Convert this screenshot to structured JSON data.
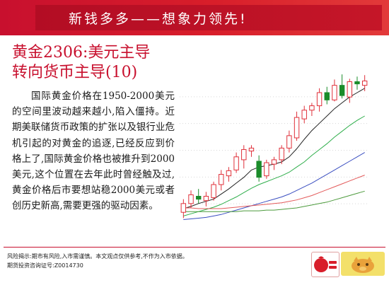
{
  "banner": {
    "text": "新钱多多——想象力领先!"
  },
  "headline": {
    "line1": "黄金2306:美元主导",
    "line2": "转向货币主导(10)"
  },
  "body": {
    "paragraph": "国际黄金价格在1950-2000美元的空间里波动越来越小,陷入僵持。近期美联储货币政策的扩张以及银行业危机引起的对黄金的追逐,已经反应到价格上了,国际黄金价格也被推升到2000美元,这个位置在去年此时曾经触及过,黄金价格后市要想站稳2000美元或者创历史新高,需要更强的驱动因素。"
  },
  "footer": {
    "risk": "风险揭示:期市有风险,入市需谨慎。本文观点仅供参考,不作为入市依据。",
    "license": "期货投资咨询证号:Z0014730"
  },
  "logos": {
    "xinqian_icon": "money-bag-logo-icon",
    "tingtai_icon": "pig-mascot-logo-icon"
  },
  "colors": {
    "brand_red": "#c8102e",
    "candle_up": "#e0303a",
    "candle_down": "#1a8c2a",
    "ma_black": "#222222",
    "ma_green": "#2fae4b",
    "ma_blue": "#3a4ec0",
    "ma_red": "#e35a5a",
    "ma_darkgreen": "#4c9a3c"
  },
  "chart_data": {
    "type": "candlestick",
    "x_axis_visible": false,
    "y_axis_visible": false,
    "grid": "horizontal-dotted",
    "candles": [
      {
        "o": 1820,
        "h": 1838,
        "l": 1812,
        "c": 1832
      },
      {
        "o": 1832,
        "h": 1850,
        "l": 1826,
        "c": 1844
      },
      {
        "o": 1842,
        "h": 1852,
        "l": 1832,
        "c": 1838
      },
      {
        "o": 1836,
        "h": 1848,
        "l": 1828,
        "c": 1842
      },
      {
        "o": 1840,
        "h": 1862,
        "l": 1836,
        "c": 1858
      },
      {
        "o": 1858,
        "h": 1878,
        "l": 1850,
        "c": 1872
      },
      {
        "o": 1870,
        "h": 1882,
        "l": 1862,
        "c": 1877
      },
      {
        "o": 1878,
        "h": 1902,
        "l": 1874,
        "c": 1896
      },
      {
        "o": 1892,
        "h": 1912,
        "l": 1880,
        "c": 1906
      },
      {
        "o": 1904,
        "h": 1912,
        "l": 1896,
        "c": 1908
      },
      {
        "o": 1890,
        "h": 1898,
        "l": 1862,
        "c": 1868
      },
      {
        "o": 1870,
        "h": 1892,
        "l": 1866,
        "c": 1888
      },
      {
        "o": 1886,
        "h": 1896,
        "l": 1878,
        "c": 1892
      },
      {
        "o": 1892,
        "h": 1912,
        "l": 1886,
        "c": 1908
      },
      {
        "o": 1908,
        "h": 1932,
        "l": 1902,
        "c": 1925
      },
      {
        "o": 1922,
        "h": 1958,
        "l": 1918,
        "c": 1950
      },
      {
        "o": 1948,
        "h": 1966,
        "l": 1942,
        "c": 1960
      },
      {
        "o": 1960,
        "h": 1970,
        "l": 1952,
        "c": 1966
      },
      {
        "o": 1966,
        "h": 1990,
        "l": 1958,
        "c": 1984
      },
      {
        "o": 1984,
        "h": 1992,
        "l": 1968,
        "c": 1974
      },
      {
        "o": 1974,
        "h": 2002,
        "l": 1972,
        "c": 1994
      },
      {
        "o": 1994,
        "h": 2009,
        "l": 1976,
        "c": 1980
      },
      {
        "o": 1978,
        "h": 2003,
        "l": 1970,
        "c": 1999
      },
      {
        "o": 1999,
        "h": 2006,
        "l": 1988,
        "c": 1996
      },
      {
        "o": 1994,
        "h": 2008,
        "l": 1986,
        "c": 2000
      }
    ],
    "moving_averages": [
      {
        "color_key": "ma_black",
        "values": [
          1825,
          1828,
          1832,
          1835,
          1838,
          1845,
          1852,
          1860,
          1868,
          1878,
          1882,
          1884,
          1886,
          1889,
          1896,
          1907,
          1920,
          1932,
          1942,
          1952,
          1962,
          1970,
          1978,
          1984,
          1990
        ]
      },
      {
        "color_key": "ma_green",
        "values": [
          1815,
          1818,
          1821,
          1824,
          1827,
          1831,
          1836,
          1841,
          1847,
          1853,
          1858,
          1862,
          1866,
          1870,
          1875,
          1882,
          1889,
          1898,
          1906,
          1914,
          1923,
          1931,
          1939,
          1946,
          1952
        ]
      },
      {
        "color_key": "ma_blue",
        "values": [
          1810,
          1811,
          1812,
          1813,
          1815,
          1817,
          1820,
          1823,
          1826,
          1829,
          1832,
          1835,
          1838,
          1841,
          1845,
          1850,
          1855,
          1860,
          1866,
          1872,
          1878,
          1884,
          1890,
          1896,
          1902
        ]
      },
      {
        "color_key": "ma_red",
        "values": [
          1826,
          1826,
          1825,
          1825,
          1825,
          1825,
          1826,
          1827,
          1828,
          1829,
          1830,
          1831,
          1832,
          1833,
          1835,
          1837,
          1840,
          1843,
          1847,
          1851,
          1855,
          1859,
          1863,
          1867,
          1871
        ]
      },
      {
        "color_key": "ma_darkgreen",
        "values": [
          1821,
          1821,
          1821,
          1821,
          1821,
          1821,
          1821,
          1821,
          1822,
          1822,
          1822,
          1823,
          1823,
          1824,
          1825,
          1826,
          1828,
          1830,
          1832,
          1834,
          1837,
          1840,
          1843,
          1846,
          1849
        ]
      }
    ],
    "ylim": [
      1795,
      2015
    ]
  }
}
